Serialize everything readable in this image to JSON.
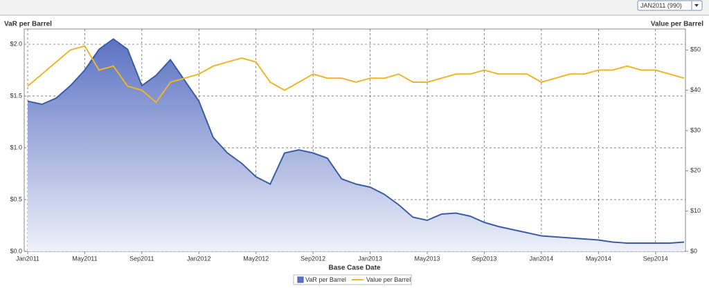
{
  "selector": "JAN2011 (990)",
  "chart_data": {
    "type": "line",
    "xlabel": "Base Case Date",
    "ylabel": "VaR per Barrel",
    "y2label": "Value per Barrel",
    "x": [
      "2011-01",
      "2011-02",
      "2011-03",
      "2011-04",
      "2011-05",
      "2011-06",
      "2011-07",
      "2011-08",
      "2011-09",
      "2011-10",
      "2011-11",
      "2011-12",
      "2012-01",
      "2012-02",
      "2012-03",
      "2012-04",
      "2012-05",
      "2012-06",
      "2012-07",
      "2012-08",
      "2012-09",
      "2012-10",
      "2012-11",
      "2012-12",
      "2013-01",
      "2013-02",
      "2013-03",
      "2013-04",
      "2013-05",
      "2013-06",
      "2013-07",
      "2013-08",
      "2013-09",
      "2013-10",
      "2013-11",
      "2013-12",
      "2014-01",
      "2014-02",
      "2014-03",
      "2014-04",
      "2014-05",
      "2014-06",
      "2014-07",
      "2014-08",
      "2014-09",
      "2014-10",
      "2014-11"
    ],
    "series": [
      {
        "name": "VaR per Barrel",
        "color": "#3a5ca8",
        "fill": true,
        "values": [
          1.45,
          1.42,
          1.48,
          1.6,
          1.75,
          1.95,
          2.05,
          1.95,
          1.6,
          1.7,
          1.85,
          1.65,
          1.45,
          1.1,
          0.95,
          0.85,
          0.72,
          0.65,
          0.95,
          0.98,
          0.95,
          0.9,
          0.7,
          0.65,
          0.62,
          0.55,
          0.45,
          0.33,
          0.3,
          0.36,
          0.37,
          0.34,
          0.28,
          0.24,
          0.21,
          0.18,
          0.15,
          0.14,
          0.13,
          0.12,
          0.11,
          0.09,
          0.08,
          0.08,
          0.08,
          0.08,
          0.09
        ]
      },
      {
        "name": "Value per Barrel",
        "color": "#f0b428",
        "axis": "y2",
        "values": [
          41,
          44,
          47,
          50,
          51,
          45,
          46,
          41,
          40,
          37,
          42,
          43,
          44,
          46,
          47,
          48,
          47,
          42,
          40,
          42,
          44,
          43,
          43,
          42,
          43,
          43,
          44,
          42,
          42,
          43,
          44,
          44,
          45,
          44,
          44,
          44,
          42,
          43,
          44,
          44,
          45,
          45,
          46,
          45,
          45,
          44,
          43
        ]
      }
    ],
    "xlim": [
      "2011-01",
      "2014-11"
    ],
    "xticks": [
      {
        "value": "2011-01",
        "label": "Jan2011"
      },
      {
        "value": "2011-05",
        "label": "May2011"
      },
      {
        "value": "2011-09",
        "label": "Sep2011"
      },
      {
        "value": "2012-01",
        "label": "Jan2012"
      },
      {
        "value": "2012-05",
        "label": "May2012"
      },
      {
        "value": "2012-09",
        "label": "Sep2012"
      },
      {
        "value": "2013-01",
        "label": "Jan2013"
      },
      {
        "value": "2013-05",
        "label": "May2013"
      },
      {
        "value": "2013-09",
        "label": "Sep2013"
      },
      {
        "value": "2014-01",
        "label": "Jan2014"
      },
      {
        "value": "2014-05",
        "label": "May2014"
      },
      {
        "value": "2014-09",
        "label": "Sep2014"
      }
    ],
    "ylim": [
      0,
      2.147
    ],
    "yticks": [
      {
        "value": 0,
        "label": "$0.0"
      },
      {
        "value": 0.5,
        "label": "$0.5"
      },
      {
        "value": 1,
        "label": "$1.0"
      },
      {
        "value": 1.5,
        "label": "$1.5"
      },
      {
        "value": 2,
        "label": "$2.0"
      }
    ],
    "y2lim": [
      0,
      55.2
    ],
    "y2ticks": [
      {
        "value": 0,
        "label": "$0"
      },
      {
        "value": 10,
        "label": "$10"
      },
      {
        "value": 20,
        "label": "$20"
      },
      {
        "value": 30,
        "label": "$30"
      },
      {
        "value": 40,
        "label": "$40"
      },
      {
        "value": 50,
        "label": "$50"
      }
    ],
    "grid": true,
    "legend": "bottom"
  }
}
